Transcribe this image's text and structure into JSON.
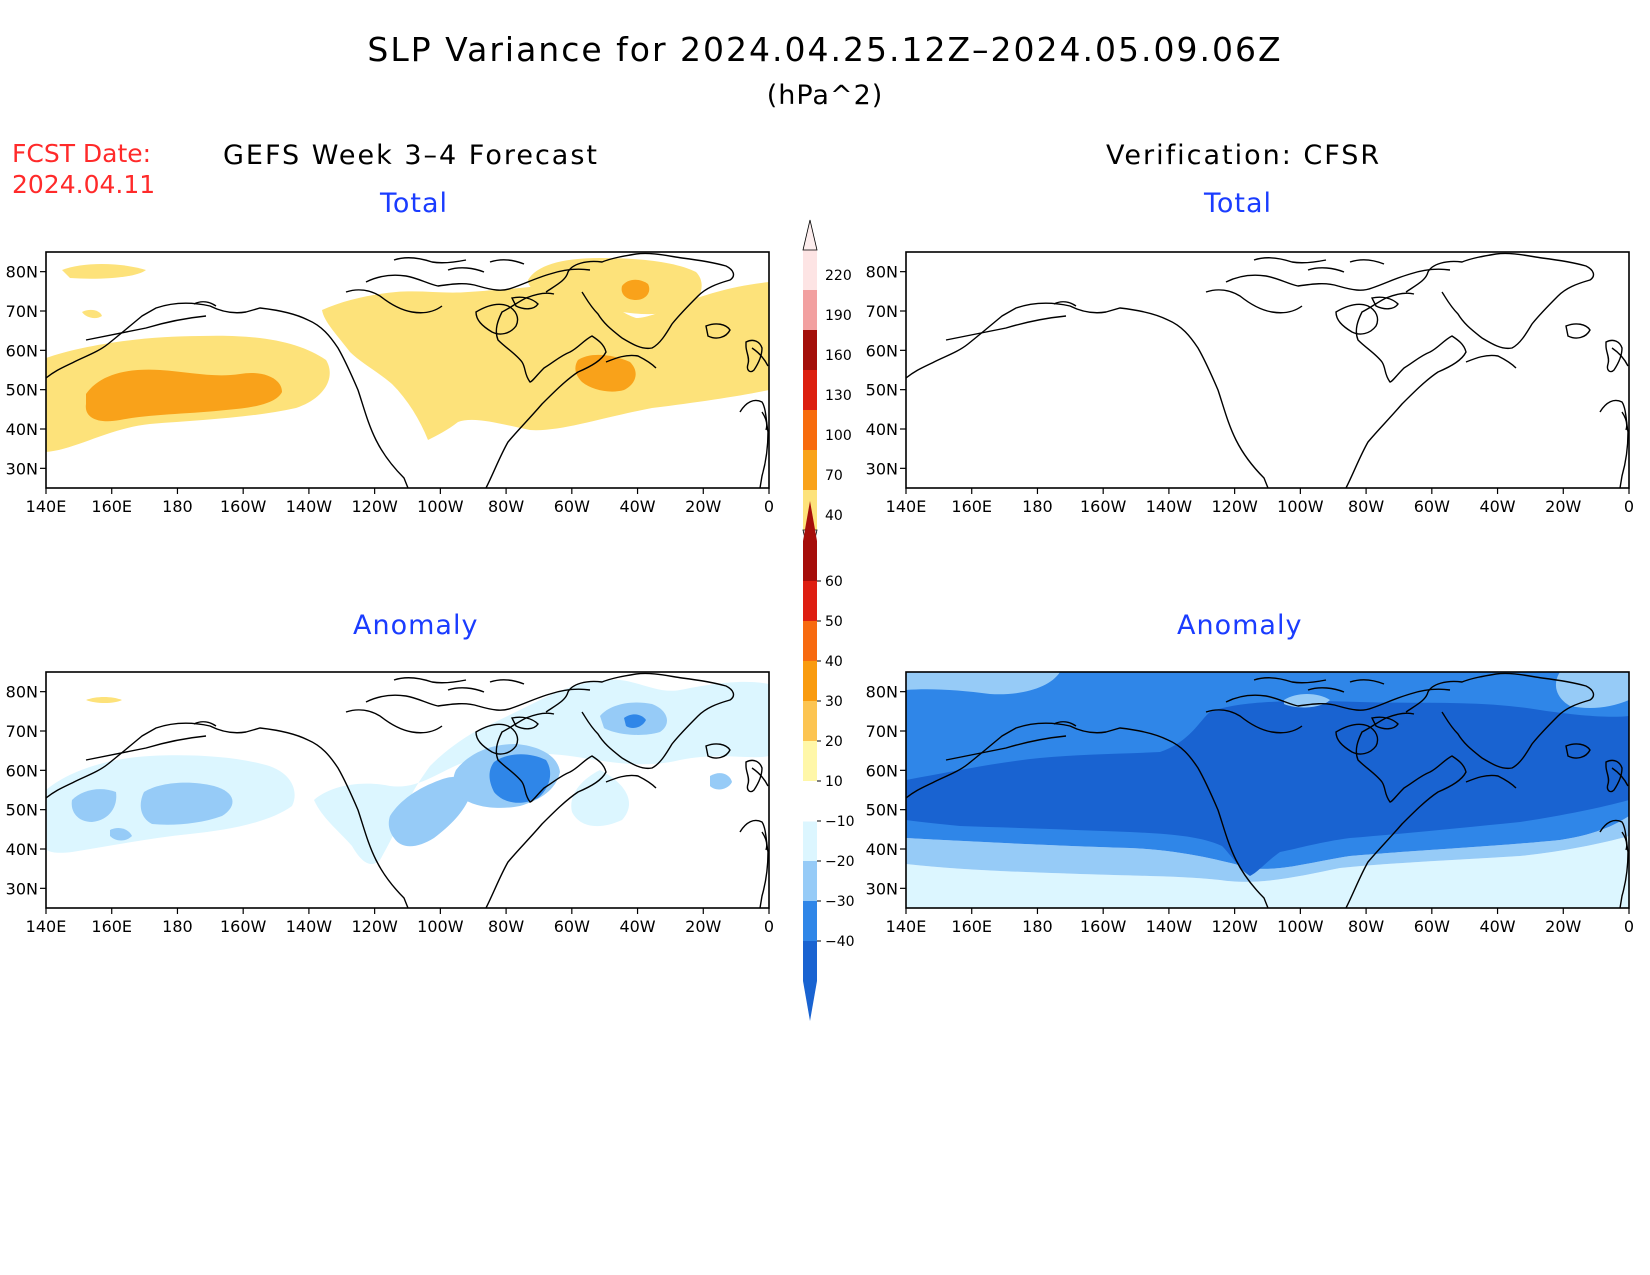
{
  "title": "SLP Variance for 2024.04.25.12Z–2024.05.09.06Z",
  "units": "(hPa^2)",
  "fcst_date": {
    "label": "FCST Date:",
    "value": "2024.04.11"
  },
  "columns": {
    "left": "GEFS Week 3–4 Forecast",
    "right": "Verification: CFSR"
  },
  "panels": [
    {
      "id": "fcst-total",
      "label": "Total",
      "scale": "total"
    },
    {
      "id": "verif-total",
      "label": "Total",
      "scale": "total"
    },
    {
      "id": "fcst-anomaly",
      "label": "Anomaly",
      "scale": "anomaly"
    },
    {
      "id": "verif-anomaly",
      "label": "Anomaly",
      "scale": "anomaly"
    }
  ],
  "axes": {
    "lat_ticks": [
      "80N",
      "70N",
      "60N",
      "50N",
      "40N",
      "30N"
    ],
    "lat_values": [
      80,
      70,
      60,
      50,
      40,
      30
    ],
    "lon_ticks": [
      "140E",
      "160E",
      "180",
      "160W",
      "140W",
      "120W",
      "100W",
      "80W",
      "60W",
      "40W",
      "20W",
      "0"
    ],
    "lon_values": [
      140,
      160,
      180,
      200,
      220,
      240,
      260,
      280,
      300,
      320,
      340,
      360
    ],
    "lon_range": [
      140,
      360
    ],
    "lat_range": [
      25,
      85
    ]
  },
  "colorbars": {
    "total": {
      "labels": [
        "40",
        "70",
        "100",
        "130",
        "160",
        "190",
        "220"
      ],
      "colors": [
        "#fde27a",
        "#f9a21a",
        "#f76b0d",
        "#dc1f0f",
        "#a40f0a",
        "#f2a0a0",
        "#fde4e4"
      ]
    },
    "anomaly": {
      "labels": [
        "−40",
        "−30",
        "−20",
        "−10",
        "10",
        "20",
        "30",
        "40",
        "50",
        "60"
      ],
      "colors": [
        "#1963d1",
        "#2f86e8",
        "#96cbf7",
        "#dcf6ff",
        "#ffffff",
        "#fff7a8",
        "#fcc451",
        "#f99b0f",
        "#f76a10",
        "#de1e11",
        "#a60d0a"
      ]
    }
  }
}
